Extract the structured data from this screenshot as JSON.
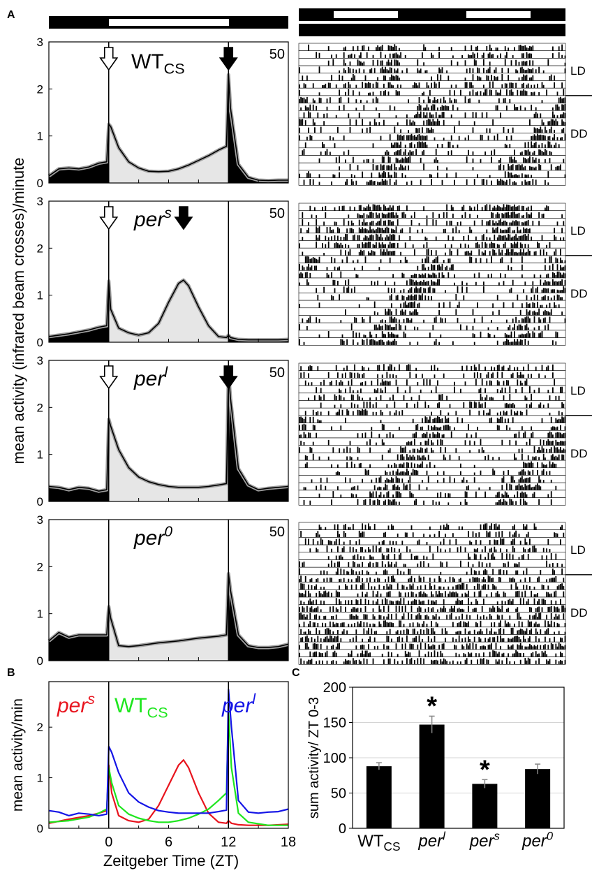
{
  "panel_labels": {
    "a": "A",
    "b": "B",
    "c": "C"
  },
  "colors": {
    "per_s": "#e8141e",
    "wt": "#1ee61e",
    "per_l": "#1414e6",
    "bar_fill": "#000000",
    "light_fill": "#e6e6e6",
    "sem": "#a0a0a0"
  },
  "panelA": {
    "ylabel": "mean activity (infrared beam crosses)/minute",
    "ylim": [
      0,
      3
    ],
    "yticks": [
      "0",
      "1",
      "2",
      "3"
    ],
    "light_dark_bar": "dark ZT -6–0, light ZT 0–12, dark ZT 12–18",
    "actogram_label_ld": "LD",
    "actogram_label_dd": "DD",
    "genotypes": [
      {
        "name": "WT",
        "subscript": "CS",
        "italic": false,
        "n": "50",
        "open_arrow_zt": 0,
        "filled_arrow_zt": 12,
        "ld_days": 7,
        "dd_days": 12
      },
      {
        "name": "per",
        "superscript": "s",
        "italic": true,
        "n": "50",
        "open_arrow_zt": 0,
        "filled_arrow_zt": 7.5,
        "ld_days": 7,
        "dd_days": 12
      },
      {
        "name": "per",
        "superscript": "l",
        "italic": true,
        "n": "50",
        "open_arrow_zt": 0,
        "filled_arrow_zt": 12,
        "ld_days": 7,
        "dd_days": 12
      },
      {
        "name": "per",
        "superscript": "0",
        "italic": true,
        "n": "50",
        "ld_days": 7,
        "dd_days": 12
      }
    ]
  },
  "panelB": {
    "ylabel": "mean activity/min",
    "xlabel": "Zeitgeber Time (ZT)",
    "xticks": [
      "0",
      "6",
      "12",
      "18"
    ],
    "yticks": [
      "0",
      "1",
      "2"
    ],
    "legend": [
      {
        "name": "per",
        "sup": "s",
        "key": "per_s"
      },
      {
        "name": "WT",
        "sub": "CS",
        "key": "wt"
      },
      {
        "name": "per",
        "sup": "l",
        "key": "per_l"
      }
    ]
  },
  "chart_data": [
    {
      "type": "area",
      "id": "A-WTcs",
      "x_range": [
        -6,
        18
      ],
      "ylim": [
        0,
        3
      ],
      "x": [
        -6,
        -5,
        -4,
        -3,
        -2,
        -1,
        -0.2,
        0,
        0.2,
        1,
        2,
        3,
        4,
        5,
        6,
        7,
        8,
        9,
        10,
        11,
        11.8,
        12,
        12.2,
        13,
        14,
        15,
        16,
        17,
        18
      ],
      "y": [
        0.15,
        0.3,
        0.32,
        0.3,
        0.34,
        0.42,
        0.45,
        1.25,
        1.2,
        0.75,
        0.45,
        0.32,
        0.25,
        0.24,
        0.25,
        0.3,
        0.38,
        0.48,
        0.58,
        0.7,
        0.78,
        2.3,
        1.6,
        0.4,
        0.12,
        0.06,
        0.05,
        0.06,
        0.06
      ]
    },
    {
      "type": "area",
      "id": "A-pers",
      "x_range": [
        -6,
        18
      ],
      "ylim": [
        0,
        3
      ],
      "x": [
        -6,
        -5,
        -4,
        -3,
        -2,
        -1,
        -0.2,
        0,
        0.2,
        1,
        2,
        3,
        4,
        5,
        6,
        7,
        7.5,
        8,
        9,
        10,
        11,
        11.8,
        12,
        12.2,
        13,
        14,
        15,
        16,
        17,
        18
      ],
      "y": [
        0.12,
        0.15,
        0.18,
        0.22,
        0.26,
        0.32,
        0.35,
        1.3,
        0.7,
        0.3,
        0.2,
        0.15,
        0.2,
        0.4,
        0.85,
        1.25,
        1.32,
        1.2,
        0.75,
        0.35,
        0.12,
        0.1,
        0.15,
        0.1,
        0.06,
        0.05,
        0.05,
        0.05,
        0.05,
        0.06
      ]
    },
    {
      "type": "area",
      "id": "A-perl",
      "x_range": [
        -6,
        18
      ],
      "ylim": [
        0,
        3
      ],
      "x": [
        -6,
        -5,
        -4,
        -3,
        -2,
        -1,
        -0.2,
        0,
        0.2,
        1,
        2,
        3,
        4,
        5,
        6,
        7,
        8,
        9,
        10,
        11,
        11.8,
        12,
        12.2,
        13,
        14,
        15,
        16,
        17,
        18
      ],
      "y": [
        0.32,
        0.3,
        0.25,
        0.3,
        0.28,
        0.22,
        0.25,
        1.75,
        1.6,
        1.1,
        0.72,
        0.52,
        0.42,
        0.36,
        0.32,
        0.3,
        0.3,
        0.3,
        0.32,
        0.35,
        0.38,
        2.75,
        2.2,
        0.7,
        0.35,
        0.25,
        0.28,
        0.3,
        0.32
      ]
    },
    {
      "type": "area",
      "id": "A-per0",
      "x_range": [
        -6,
        18
      ],
      "ylim": [
        0,
        3
      ],
      "x": [
        -6,
        -5,
        -4,
        -3,
        -2,
        -1,
        -0.2,
        0,
        0.2,
        1,
        2,
        3,
        4,
        5,
        6,
        7,
        8,
        9,
        10,
        11,
        11.8,
        12,
        12.2,
        13,
        14,
        15,
        16,
        17,
        18
      ],
      "y": [
        0.42,
        0.6,
        0.5,
        0.55,
        0.55,
        0.55,
        0.55,
        1.15,
        0.9,
        0.32,
        0.3,
        0.32,
        0.35,
        0.38,
        0.4,
        0.42,
        0.45,
        0.48,
        0.5,
        0.52,
        0.55,
        1.85,
        1.5,
        0.55,
        0.32,
        0.28,
        0.28,
        0.3,
        0.35
      ]
    },
    {
      "type": "line",
      "id": "B",
      "x_range": [
        -6,
        18
      ],
      "ylim": [
        0,
        2.9
      ],
      "series": [
        {
          "name": "pers",
          "color_key": "per_s",
          "x": [
            -6,
            -4,
            -2,
            -1,
            -0.2,
            0,
            0.3,
            1,
            2,
            3,
            4,
            5,
            6,
            7,
            7.5,
            8,
            9,
            10,
            11,
            11.8,
            12,
            12.3,
            13,
            14,
            16,
            18
          ],
          "y": [
            0.1,
            0.18,
            0.25,
            0.3,
            0.35,
            1.25,
            0.7,
            0.25,
            0.15,
            0.12,
            0.18,
            0.45,
            0.85,
            1.25,
            1.35,
            1.2,
            0.7,
            0.3,
            0.12,
            0.1,
            0.15,
            0.1,
            0.07,
            0.06,
            0.06,
            0.08
          ]
        },
        {
          "name": "WTcs",
          "color_key": "wt",
          "x": [
            -6,
            -4,
            -2,
            -1,
            -0.2,
            0,
            0.3,
            1,
            2,
            3,
            4,
            5,
            6,
            7,
            8,
            9,
            10,
            11,
            11.8,
            12,
            12.3,
            13,
            14,
            16,
            18
          ],
          "y": [
            0.12,
            0.15,
            0.22,
            0.3,
            0.38,
            1.2,
            0.9,
            0.45,
            0.28,
            0.2,
            0.15,
            0.12,
            0.12,
            0.15,
            0.2,
            0.28,
            0.38,
            0.55,
            0.7,
            2.3,
            1.2,
            0.3,
            0.12,
            0.06,
            0.06
          ]
        },
        {
          "name": "perl",
          "color_key": "per_l",
          "x": [
            -6,
            -5,
            -4,
            -3,
            -2,
            -1,
            -0.2,
            0,
            0.3,
            1,
            2,
            3,
            4,
            5,
            6,
            7,
            8,
            9,
            10,
            11,
            11.8,
            12,
            12.3,
            13,
            14,
            15,
            16,
            17,
            18
          ],
          "y": [
            0.35,
            0.32,
            0.25,
            0.3,
            0.28,
            0.25,
            0.28,
            1.62,
            1.5,
            1.1,
            0.7,
            0.52,
            0.42,
            0.35,
            0.32,
            0.3,
            0.3,
            0.3,
            0.3,
            0.33,
            0.36,
            2.75,
            2.0,
            0.55,
            0.32,
            0.3,
            0.32,
            0.33,
            0.38
          ]
        }
      ],
      "xlabel": "Zeitgeber Time (ZT)",
      "ylabel": "mean activity/min"
    },
    {
      "type": "bar",
      "id": "C",
      "categories": [
        "WTCS",
        "perl",
        "pers",
        "per0"
      ],
      "category_labels": [
        {
          "base": "WT",
          "sub": "CS",
          "italic": false
        },
        {
          "base": "per",
          "sup": "l",
          "italic": true
        },
        {
          "base": "per",
          "sup": "s",
          "italic": true
        },
        {
          "base": "per",
          "sup": "0",
          "italic": true
        }
      ],
      "values": [
        88,
        147,
        63,
        84
      ],
      "errors": [
        5,
        12,
        6,
        7
      ],
      "significant": [
        false,
        true,
        true,
        false
      ],
      "significance_mark": "*",
      "ylim": [
        0,
        200
      ],
      "yticks": [
        "0",
        "50",
        "100",
        "150",
        "200"
      ],
      "ylabel": "sum activity/ ZT 0-3",
      "grid": true
    }
  ]
}
